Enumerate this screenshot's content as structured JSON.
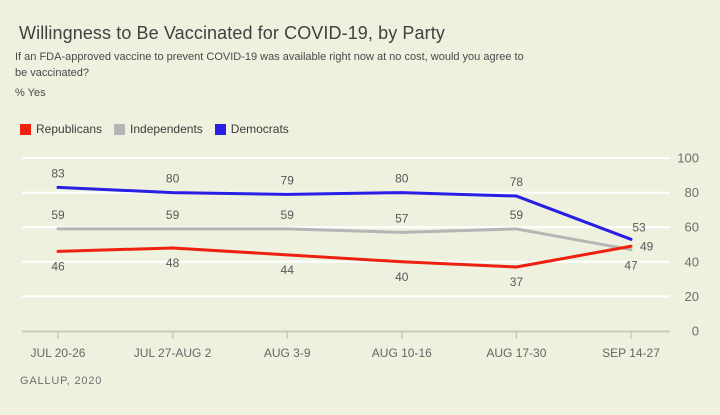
{
  "page": {
    "background": "#edf1de",
    "footer": "GALLUP, 2020"
  },
  "header": {
    "title": "Willingness to Be Vaccinated for COVID-19, by Party",
    "subtitle_line1": "If an FDA-approved vaccine to prevent COVID-19 was available right now at no cost, would you agree to",
    "subtitle_line2": "be vaccinated?",
    "unit_label": "% Yes"
  },
  "chart_data": {
    "type": "line",
    "title": "Willingness to Be Vaccinated for COVID-19, by Party",
    "subtitle": "If an FDA-approved vaccine to prevent COVID-19 was available right now at no cost, would you agree to be vaccinated?",
    "unit": "% Yes",
    "source": "GALLUP, 2020",
    "categories": [
      "JUL 20-26",
      "JUL 27-AUG 2",
      "AUG 3-9",
      "AUG 10-16",
      "AUG 17-30",
      "SEP 14-27"
    ],
    "series": [
      {
        "name": "Republicans",
        "color": "#ee2110",
        "values": [
          46,
          48,
          44,
          40,
          37,
          49
        ]
      },
      {
        "name": "Independents",
        "color": "#b5b5b5",
        "values": [
          59,
          59,
          59,
          57,
          59,
          47
        ]
      },
      {
        "name": "Democrats",
        "color": "#2a1de4",
        "values": [
          83,
          80,
          79,
          80,
          78,
          53
        ]
      }
    ],
    "ylim": [
      0,
      100
    ],
    "yticks": [
      0,
      20,
      40,
      60,
      80,
      100
    ],
    "grid": "horizontal-white",
    "legend_position": "top-left",
    "colors": {
      "gridline": "#ffffff",
      "axis": "#c9ccbc",
      "value_label": "#58585a",
      "x_tick_label": "#666666",
      "y_tick_label": "#6e6e6e"
    }
  }
}
